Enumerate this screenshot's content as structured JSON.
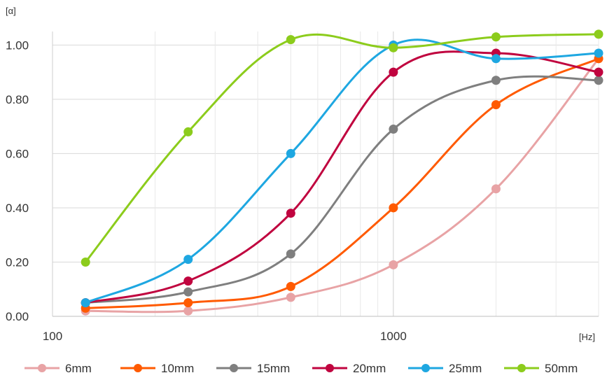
{
  "chart_data": {
    "type": "line",
    "title": "",
    "xlabel": "[Hz]",
    "ylabel": "[α]",
    "x_scale": "log",
    "xlim": [
      100,
      4000
    ],
    "ylim": [
      0,
      1.05
    ],
    "x_ticks": [
      {
        "value": 100,
        "label": "100"
      },
      {
        "value": 1000,
        "label": "1000"
      }
    ],
    "y_ticks": [
      {
        "value": 0,
        "label": "0.00"
      },
      {
        "value": 0.2,
        "label": "0.20"
      },
      {
        "value": 0.4,
        "label": "0.40"
      },
      {
        "value": 0.6,
        "label": "0.60"
      },
      {
        "value": 0.8,
        "label": "0.80"
      },
      {
        "value": 1.0,
        "label": "1.00"
      }
    ],
    "grid": true,
    "legend_position": "bottom",
    "x": [
      125,
      250,
      500,
      1000,
      2000,
      4000
    ],
    "series": [
      {
        "name": "6mm",
        "color": "#e8a3a5",
        "values": [
          0.02,
          0.02,
          0.07,
          0.19,
          0.47,
          0.95
        ]
      },
      {
        "name": "10mm",
        "color": "#ff5a00",
        "values": [
          0.03,
          0.05,
          0.11,
          0.4,
          0.78,
          0.95
        ]
      },
      {
        "name": "15mm",
        "color": "#7f7f7f",
        "values": [
          0.05,
          0.09,
          0.23,
          0.69,
          0.87,
          0.87
        ]
      },
      {
        "name": "20mm",
        "color": "#c0043f",
        "values": [
          0.05,
          0.13,
          0.38,
          0.9,
          0.97,
          0.9
        ]
      },
      {
        "name": "25mm",
        "color": "#1ea7e1",
        "values": [
          0.05,
          0.21,
          0.6,
          1.0,
          0.95,
          0.97
        ]
      },
      {
        "name": "50mm",
        "color": "#8ccc1c",
        "values": [
          0.2,
          0.68,
          1.02,
          0.99,
          1.03,
          1.04
        ]
      }
    ]
  }
}
